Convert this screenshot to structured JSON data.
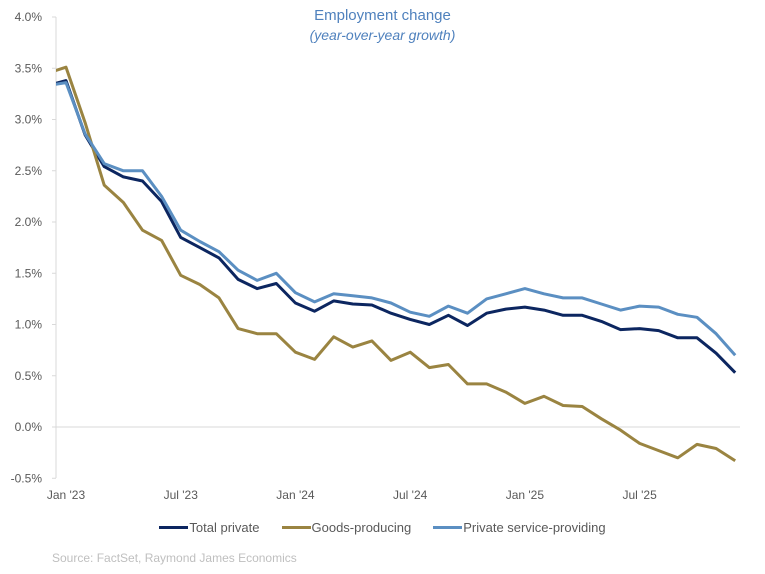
{
  "chart_data": {
    "type": "line",
    "title": "Employment change",
    "subtitle": "(year-over-year growth)",
    "xlabel": "",
    "ylabel": "",
    "ylim": [
      -0.5,
      4.0
    ],
    "y_ticks": [
      "4.0%",
      "3.5%",
      "3.0%",
      "2.5%",
      "2.0%",
      "1.5%",
      "1.0%",
      "0.5%",
      "0.0%",
      "-0.5%"
    ],
    "y_tick_values": [
      4.0,
      3.5,
      3.0,
      2.5,
      2.0,
      1.5,
      1.0,
      0.5,
      0.0,
      -0.5
    ],
    "x_ticks": [
      "Jan '23",
      "Jul '23",
      "Jan '24",
      "Jul '24",
      "Jan '25",
      "Jul '25"
    ],
    "x_tick_months": [
      "2023-01",
      "2023-07",
      "2024-01",
      "2024-07",
      "2025-01",
      "2025-07"
    ],
    "x_range": [
      "2023-01",
      "2025-12"
    ],
    "grid": false,
    "legend_position": "bottom",
    "x": [
      "2022-12",
      "2023-01",
      "2023-02",
      "2023-03",
      "2023-04",
      "2023-05",
      "2023-06",
      "2023-07",
      "2023-08",
      "2023-09",
      "2023-10",
      "2023-11",
      "2023-12",
      "2024-01",
      "2024-02",
      "2024-03",
      "2024-04",
      "2024-05",
      "2024-06",
      "2024-07",
      "2024-08",
      "2024-09",
      "2024-10",
      "2024-11",
      "2024-12",
      "2025-01",
      "2025-02",
      "2025-03",
      "2025-04",
      "2025-05",
      "2025-06",
      "2025-07",
      "2025-08",
      "2025-09",
      "2025-10",
      "2025-11",
      "2025-12"
    ],
    "series": [
      {
        "name": "Total private",
        "color": "#0c2660",
        "values": [
          3.33,
          3.38,
          2.85,
          2.54,
          2.44,
          2.4,
          2.2,
          1.85,
          1.75,
          1.65,
          1.44,
          1.35,
          1.4,
          1.21,
          1.13,
          1.23,
          1.2,
          1.19,
          1.11,
          1.05,
          1.0,
          1.09,
          0.99,
          1.11,
          1.15,
          1.17,
          1.14,
          1.09,
          1.09,
          1.03,
          0.95,
          0.96,
          0.94,
          0.87,
          0.87,
          0.72,
          0.53
        ]
      },
      {
        "name": "Goods-producing",
        "color": "#9a8441",
        "values": [
          3.45,
          3.51,
          2.97,
          2.36,
          2.19,
          1.92,
          1.82,
          1.48,
          1.39,
          1.26,
          0.96,
          0.91,
          0.91,
          0.73,
          0.66,
          0.88,
          0.78,
          0.84,
          0.65,
          0.73,
          0.58,
          0.61,
          0.42,
          0.42,
          0.34,
          0.23,
          0.3,
          0.21,
          0.2,
          0.08,
          -0.03,
          -0.16,
          -0.23,
          -0.3,
          -0.17,
          -0.21,
          -0.33
        ]
      },
      {
        "name": "Private service-providing",
        "color": "#5b8fc2",
        "values": [
          3.33,
          3.36,
          2.86,
          2.57,
          2.5,
          2.5,
          2.25,
          1.92,
          1.81,
          1.71,
          1.53,
          1.43,
          1.5,
          1.31,
          1.22,
          1.3,
          1.28,
          1.26,
          1.21,
          1.12,
          1.08,
          1.18,
          1.11,
          1.25,
          1.3,
          1.35,
          1.3,
          1.26,
          1.26,
          1.2,
          1.14,
          1.18,
          1.17,
          1.1,
          1.07,
          0.91,
          0.7
        ]
      }
    ]
  },
  "source": "Source: FactSet, Raymond James Economics"
}
